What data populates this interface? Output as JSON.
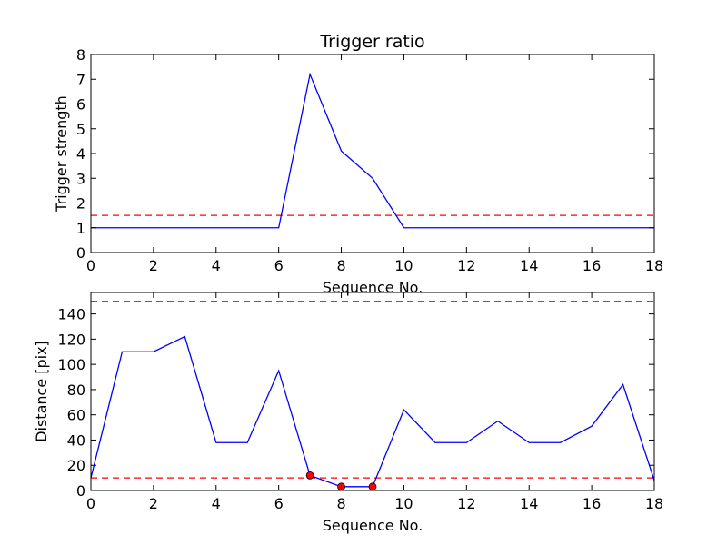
{
  "chart_data": [
    {
      "type": "line",
      "title": "Trigger ratio",
      "xlabel": "Sequence No.",
      "ylabel": "Trigger strength",
      "xlim": [
        0,
        18
      ],
      "ylim": [
        0,
        8
      ],
      "xticks": [
        0,
        2,
        4,
        6,
        8,
        10,
        12,
        14,
        16,
        18
      ],
      "yticks": [
        0,
        1,
        2,
        3,
        4,
        5,
        6,
        7,
        8
      ],
      "grid": false,
      "series": [
        {
          "color": "#0000ff",
          "style": "solid",
          "x": [
            0,
            1,
            2,
            3,
            4,
            5,
            6,
            7,
            8,
            9,
            10,
            11,
            12,
            13,
            14,
            15,
            16,
            17,
            18
          ],
          "values": [
            1,
            1,
            1,
            1,
            1,
            1,
            1,
            7.2,
            4.1,
            3.0,
            1,
            1,
            1,
            1,
            1,
            1,
            1,
            1,
            1
          ]
        }
      ],
      "hlines": [
        {
          "y": 1.5,
          "color": "#ff0000",
          "style": "dashed"
        }
      ]
    },
    {
      "type": "line",
      "title": "",
      "xlabel": "Sequence No.",
      "ylabel": "Distance [pix]",
      "xlim": [
        0,
        18
      ],
      "ylim": [
        0,
        157
      ],
      "xticks": [
        0,
        2,
        4,
        6,
        8,
        10,
        12,
        14,
        16,
        18
      ],
      "yticks": [
        0,
        20,
        40,
        60,
        80,
        100,
        120,
        140
      ],
      "grid": false,
      "series": [
        {
          "color": "#0000ff",
          "style": "solid",
          "x": [
            0,
            1,
            2,
            3,
            4,
            5,
            6,
            7,
            8,
            9,
            10,
            11,
            12,
            13,
            14,
            15,
            16,
            17,
            18
          ],
          "values": [
            10,
            110,
            110,
            122,
            38,
            38,
            95,
            12,
            3,
            3,
            64,
            38,
            38,
            55,
            38,
            38,
            51,
            84,
            8
          ]
        }
      ],
      "markers": {
        "color": "#ff0000",
        "x": [
          7,
          8,
          9
        ],
        "values": [
          12,
          3,
          3
        ]
      },
      "hlines": [
        {
          "y": 10,
          "color": "#ff0000",
          "style": "dashed"
        },
        {
          "y": 150,
          "color": "#ff0000",
          "style": "dashed"
        }
      ]
    }
  ]
}
